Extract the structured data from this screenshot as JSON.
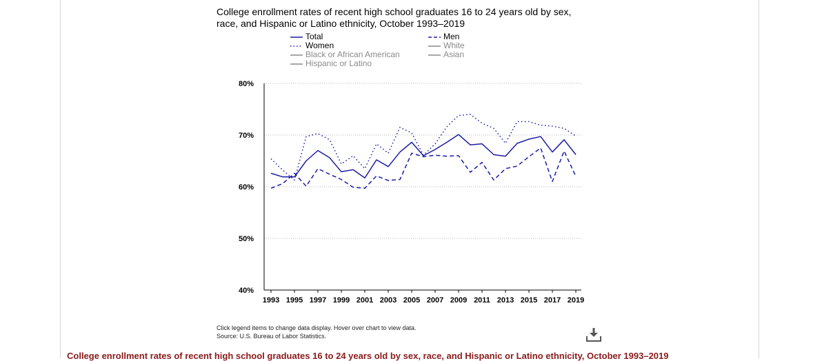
{
  "title": "College enrollment rates of recent high school graduates 16 to 24 years old by sex, race, and Hispanic or Latino ethnicity, October 1993–2019",
  "legend": [
    {
      "label": "Total",
      "style": "solid",
      "color": "#1a1aa6",
      "active": true
    },
    {
      "label": "Men",
      "style": "dashed",
      "color": "#1a1aa6",
      "active": true
    },
    {
      "label": "Women",
      "style": "dotted",
      "color": "#1a1aa6",
      "active": true
    },
    {
      "label": "White",
      "style": "solid",
      "color": "#8a8a8a",
      "active": false
    },
    {
      "label": "Black or African American",
      "style": "solid",
      "color": "#8a8a8a",
      "active": false
    },
    {
      "label": "Asian",
      "style": "solid",
      "color": "#8a8a8a",
      "active": false
    },
    {
      "label": "Hispanic or Latino",
      "style": "solid",
      "color": "#8a8a8a",
      "active": false
    }
  ],
  "notes": {
    "instructions": "Click legend items to change data display. Hover over chart to view data.",
    "source": "Source: U.S. Bureau of Labor Statistics."
  },
  "download_icon": "download-icon",
  "caption": "College enrollment rates of recent high school graduates 16 to 24 years old by sex, race, and Hispanic or Latino ethnicity, October 1993–2019",
  "chart_data": {
    "type": "line",
    "title": "College enrollment rates of recent high school graduates 16 to 24 years old by sex, race, and Hispanic or Latino ethnicity, October 1993–2019",
    "x": [
      1993,
      1994,
      1995,
      1996,
      1997,
      1998,
      1999,
      2000,
      2001,
      2002,
      2003,
      2004,
      2005,
      2006,
      2007,
      2008,
      2009,
      2010,
      2011,
      2012,
      2013,
      2014,
      2015,
      2016,
      2017,
      2018,
      2019
    ],
    "x_tick_labels": [
      "1993",
      "1995",
      "1997",
      "1999",
      "2001",
      "2003",
      "2005",
      "2007",
      "2009",
      "2011",
      "2013",
      "2015",
      "2017",
      "2019"
    ],
    "y_tick_labels": [
      "40%",
      "50%",
      "60%",
      "70%",
      "80%"
    ],
    "ylim": [
      40,
      80
    ],
    "grid": "horizontal dotted",
    "series": [
      {
        "name": "Total",
        "style": "solid",
        "color": "#1a1aa6",
        "values": [
          62.6,
          61.9,
          61.9,
          65.0,
          67.0,
          65.6,
          62.9,
          63.3,
          61.7,
          65.2,
          63.9,
          66.7,
          68.6,
          66.0,
          67.2,
          68.6,
          70.1,
          68.1,
          68.3,
          66.2,
          65.9,
          68.4,
          69.2,
          69.7,
          66.7,
          69.1,
          66.2
        ]
      },
      {
        "name": "Men",
        "style": "dashed",
        "color": "#1a1aa6",
        "values": [
          59.7,
          60.6,
          62.6,
          60.1,
          63.5,
          62.4,
          61.4,
          59.9,
          59.7,
          62.1,
          61.2,
          61.4,
          66.5,
          65.8,
          66.1,
          65.9,
          66.0,
          62.8,
          64.7,
          61.3,
          63.5,
          64.0,
          65.8,
          67.5,
          61.0,
          66.9,
          62.0
        ]
      },
      {
        "name": "Women",
        "style": "dotted",
        "color": "#1a1aa6",
        "values": [
          65.4,
          63.2,
          61.3,
          69.7,
          70.3,
          69.1,
          64.4,
          66.0,
          63.5,
          68.3,
          66.5,
          71.5,
          70.4,
          66.1,
          68.3,
          71.6,
          73.8,
          74.0,
          72.3,
          71.3,
          68.4,
          72.6,
          72.6,
          71.9,
          71.7,
          71.3,
          69.8
        ]
      }
    ]
  }
}
